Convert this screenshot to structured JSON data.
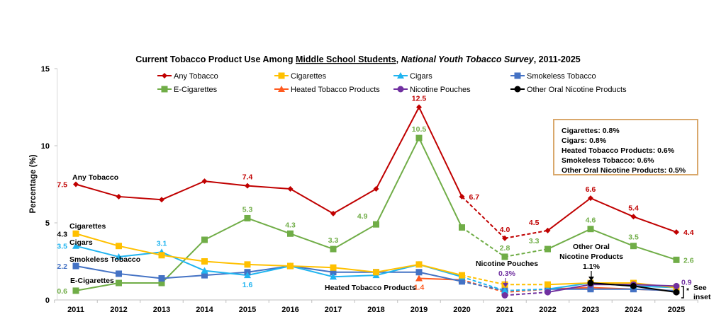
{
  "chart_data": {
    "type": "line",
    "title_parts": {
      "pre": "Current Tobacco Product Use Among ",
      "underlined": "Middle School Students",
      "sep": ", ",
      "italic": "National Youth Tobacco Survey",
      "post": ", 2011-2025"
    },
    "xlabel": "",
    "ylabel": "Percentage (%)",
    "ylim": [
      0,
      15
    ],
    "yticks": [
      0,
      5,
      10,
      15
    ],
    "x": [
      2011,
      2012,
      2013,
      2014,
      2015,
      2016,
      2017,
      2018,
      2019,
      2020,
      2021,
      2022,
      2023,
      2024,
      2025
    ],
    "dashed_segment_years": [
      2020,
      2021,
      2022
    ],
    "legend_placement": "top",
    "series": [
      {
        "name": "Any Tobacco",
        "color": "#c00000",
        "marker": "diamond",
        "values": [
          7.5,
          6.7,
          6.5,
          7.7,
          7.4,
          7.2,
          5.6,
          7.2,
          12.5,
          6.7,
          4.0,
          4.5,
          6.6,
          5.4,
          4.4
        ]
      },
      {
        "name": "Cigarettes",
        "color": "#ffc000",
        "marker": "square",
        "values": [
          4.3,
          3.5,
          2.9,
          2.5,
          2.3,
          2.2,
          2.1,
          1.8,
          2.3,
          1.6,
          1.0,
          1.0,
          1.1,
          1.1,
          0.8
        ]
      },
      {
        "name": "Cigars",
        "color": "#1fb4f0",
        "marker": "triangle",
        "values": [
          3.5,
          2.8,
          3.1,
          1.9,
          1.6,
          2.2,
          1.5,
          1.6,
          2.3,
          1.5,
          0.6,
          0.7,
          1.1,
          0.9,
          0.8
        ]
      },
      {
        "name": "Smokeless Tobacco",
        "color": "#4472c4",
        "marker": "square",
        "values": [
          2.2,
          1.7,
          1.4,
          1.6,
          1.8,
          2.2,
          1.8,
          1.8,
          1.8,
          1.2,
          0.6,
          0.7,
          0.7,
          0.7,
          0.6
        ]
      },
      {
        "name": "E-Cigarettes",
        "color": "#70ad47",
        "marker": "square",
        "values": [
          0.6,
          1.1,
          1.1,
          3.9,
          5.3,
          4.3,
          3.3,
          4.9,
          10.5,
          4.7,
          2.8,
          3.3,
          4.6,
          3.5,
          2.6
        ]
      },
      {
        "name": "Heated Tobacco Products",
        "color": "#ff5a1f",
        "marker": "triangle",
        "values": [
          null,
          null,
          null,
          null,
          null,
          null,
          null,
          null,
          1.4,
          1.3,
          0.5,
          0.7,
          0.8,
          0.7,
          0.6
        ]
      },
      {
        "name": "Nicotine Pouches",
        "color": "#7030a0",
        "marker": "circle",
        "values": [
          null,
          null,
          null,
          null,
          null,
          null,
          null,
          null,
          null,
          null,
          0.3,
          0.5,
          1.0,
          1.0,
          0.9
        ]
      },
      {
        "name": "Other Oral Nicotine Products",
        "color": "#000000",
        "marker": "circle",
        "values": [
          null,
          null,
          null,
          null,
          null,
          null,
          null,
          null,
          null,
          null,
          null,
          null,
          1.1,
          0.9,
          0.5
        ]
      }
    ],
    "data_labels": [
      {
        "series": 0,
        "year": 2011,
        "text": "7.5",
        "pos": "left"
      },
      {
        "series": 0,
        "year": 2015,
        "text": "7.4",
        "pos": "above"
      },
      {
        "series": 0,
        "year": 2019,
        "text": "12.5",
        "pos": "above"
      },
      {
        "series": 0,
        "year": 2020,
        "text": "6.7",
        "pos": "right"
      },
      {
        "series": 0,
        "year": 2021,
        "text": "4.0",
        "pos": "above"
      },
      {
        "series": 0,
        "year": 2022,
        "text": "4.5",
        "pos": "aboveleft"
      },
      {
        "series": 0,
        "year": 2023,
        "text": "6.6",
        "pos": "above"
      },
      {
        "series": 0,
        "year": 2024,
        "text": "5.4",
        "pos": "above"
      },
      {
        "series": 0,
        "year": 2025,
        "text": "4.4",
        "pos": "right"
      },
      {
        "series": 1,
        "year": 2011,
        "text": "4.3",
        "pos": "left",
        "color": "#000000"
      },
      {
        "series": 2,
        "year": 2011,
        "text": "3.5",
        "pos": "left"
      },
      {
        "series": 2,
        "year": 2013,
        "text": "3.1",
        "pos": "above"
      },
      {
        "series": 2,
        "year": 2015,
        "text": "1.6",
        "pos": "below"
      },
      {
        "series": 3,
        "year": 2011,
        "text": "2.2",
        "pos": "left"
      },
      {
        "series": 4,
        "year": 2011,
        "text": "0.6",
        "pos": "left"
      },
      {
        "series": 4,
        "year": 2015,
        "text": "5.3",
        "pos": "above"
      },
      {
        "series": 4,
        "year": 2016,
        "text": "4.3",
        "pos": "above"
      },
      {
        "series": 4,
        "year": 2017,
        "text": "3.3",
        "pos": "above"
      },
      {
        "series": 4,
        "year": 2018,
        "text": "4.9",
        "pos": "aboveleft"
      },
      {
        "series": 4,
        "year": 2019,
        "text": "10.5",
        "pos": "above"
      },
      {
        "series": 4,
        "year": 2021,
        "text": "2.8",
        "pos": "above"
      },
      {
        "series": 4,
        "year": 2022,
        "text": "3.3",
        "pos": "aboveleft"
      },
      {
        "series": 4,
        "year": 2023,
        "text": "4.6",
        "pos": "above"
      },
      {
        "series": 4,
        "year": 2024,
        "text": "3.5",
        "pos": "above"
      },
      {
        "series": 4,
        "year": 2025,
        "text": "2.6",
        "pos": "right"
      },
      {
        "series": 5,
        "year": 2019,
        "text": "1.4",
        "pos": "belowright"
      },
      {
        "series": 6,
        "year": 2025,
        "text": "0.9",
        "pos": "aboveright"
      }
    ],
    "annotations": {
      "series_labels": [
        {
          "text": "Any Tobacco"
        },
        {
          "text": "Cigarettes"
        },
        {
          "text": "Cigars"
        },
        {
          "text": "Smokeless Tobacco"
        },
        {
          "text": "E-Cigarettes"
        },
        {
          "text": "Heated Tobacco Products"
        }
      ],
      "nicotine_pouches_title": "Nicotine Pouches",
      "nicotine_pouches_value": "0.3%",
      "other_oral_line1": "Other Oral",
      "other_oral_line2": "Nicotine Products",
      "other_oral_value": "1.1%",
      "see_inset_star": "*",
      "see_inset_line1": "See",
      "see_inset_line2": "inset"
    },
    "inset": [
      "Cigarettes: 0.8%",
      "Cigars: 0.8%",
      "Heated Tobacco Products: 0.6%",
      "Smokeless Tobacco: 0.6%",
      "Other Oral Nicotine Products: 0.5%"
    ]
  }
}
